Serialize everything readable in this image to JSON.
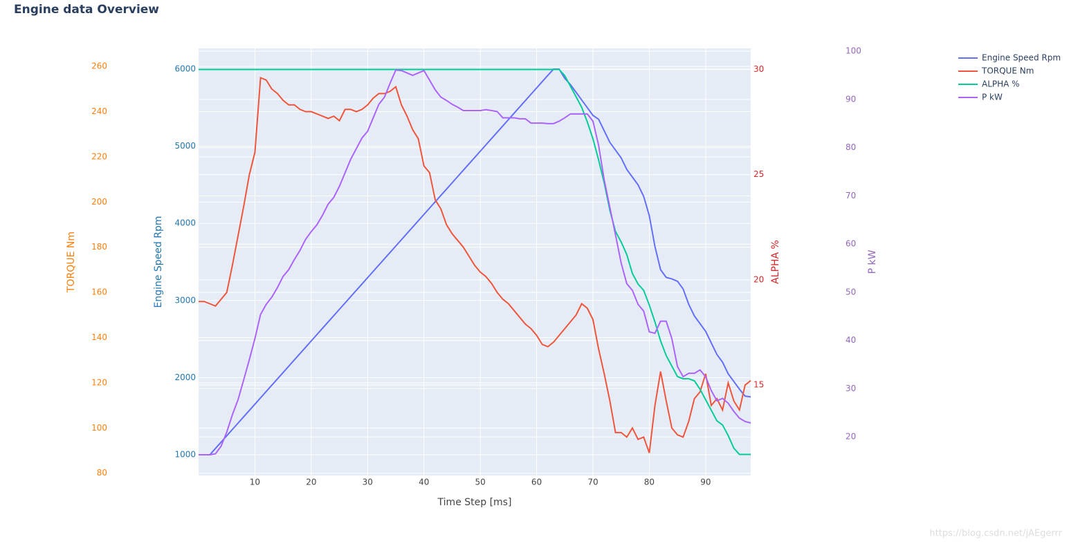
{
  "chart_data": {
    "type": "line",
    "title": "Engine data Overview",
    "xlabel": "Time Step [ms]",
    "watermark": "https://blog.csdn.net/jAEgerrr",
    "xlim": [
      0,
      98
    ],
    "xticks": [
      10,
      20,
      30,
      40,
      50,
      60,
      70,
      80,
      90
    ],
    "grid": true,
    "legend": "top-right",
    "yaxes": [
      {
        "id": "y3",
        "title": "TORQUE Nm",
        "color": "#ff7f0e",
        "lim": [
          79,
          268
        ],
        "ticks": [
          80,
          100,
          120,
          140,
          160,
          180,
          200,
          220,
          240,
          260
        ]
      },
      {
        "id": "y",
        "title": "Engine Speed Rpm",
        "color": "#1f77b4",
        "lim": [
          731,
          6269
        ],
        "ticks": [
          1000,
          2000,
          3000,
          4000,
          5000,
          6000
        ]
      },
      {
        "id": "y2",
        "title": "ALPHA %",
        "color": "#d62728",
        "lim": [
          10.7,
          31
        ],
        "ticks": [
          15,
          20,
          25,
          30
        ]
      },
      {
        "id": "y4",
        "title": "P kW",
        "color": "#9467bd",
        "lim": [
          12,
          100.6
        ],
        "ticks": [
          20,
          30,
          40,
          50,
          60,
          70,
          80,
          90,
          100
        ]
      }
    ],
    "x": [
      0,
      1,
      2,
      3,
      4,
      5,
      6,
      7,
      8,
      9,
      10,
      11,
      12,
      13,
      14,
      15,
      16,
      17,
      18,
      19,
      20,
      21,
      22,
      23,
      24,
      25,
      26,
      27,
      28,
      29,
      30,
      31,
      32,
      33,
      34,
      35,
      36,
      37,
      38,
      39,
      40,
      41,
      42,
      43,
      44,
      45,
      46,
      47,
      48,
      49,
      50,
      51,
      52,
      53,
      54,
      55,
      56,
      57,
      58,
      59,
      60,
      61,
      62,
      63,
      64,
      65,
      66,
      67,
      68,
      69,
      70,
      71,
      72,
      73,
      74,
      75,
      76,
      77,
      78,
      79,
      80,
      81,
      82,
      83,
      84,
      85,
      86,
      87,
      88,
      89,
      90,
      91,
      92,
      93,
      94,
      95,
      96,
      97,
      98
    ],
    "series": [
      {
        "name": "Engine Speed Rpm",
        "color": "#636efa",
        "axis": "y",
        "values": [
          1000,
          1000,
          1000,
          1082,
          1164,
          1246,
          1328,
          1410,
          1492,
          1574,
          1656,
          1738,
          1820,
          1902,
          1984,
          2066,
          2148,
          2230,
          2312,
          2394,
          2476,
          2558,
          2640,
          2722,
          2804,
          2886,
          2968,
          3050,
          3132,
          3214,
          3296,
          3378,
          3460,
          3542,
          3624,
          3706,
          3788,
          3870,
          3952,
          4034,
          4116,
          4198,
          4280,
          4362,
          4444,
          4526,
          4608,
          4690,
          4772,
          4854,
          4936,
          5018,
          5100,
          5182,
          5264,
          5346,
          5428,
          5510,
          5592,
          5674,
          5756,
          5838,
          5920,
          6000,
          6000,
          5880,
          5800,
          5700,
          5600,
          5500,
          5400,
          5350,
          5200,
          5050,
          4950,
          4850,
          4700,
          4600,
          4500,
          4350,
          4100,
          3700,
          3400,
          3300,
          3280,
          3250,
          3150,
          2950,
          2800,
          2700,
          2600,
          2450,
          2300,
          2200,
          2050,
          1950,
          1850,
          1760,
          1750
        ]
      },
      {
        "name": "TORQUE Nm",
        "color": "#EF553B",
        "axis": "y3",
        "values": [
          156,
          156,
          155,
          154,
          157,
          160,
          172,
          185,
          198,
          212,
          222,
          255,
          254,
          250,
          248,
          245,
          243,
          243,
          241,
          240,
          240,
          239,
          238,
          237,
          238,
          236,
          241,
          241,
          240,
          241,
          243,
          246,
          248,
          248,
          249,
          251,
          243,
          238,
          232,
          228,
          216,
          213,
          201,
          197,
          190,
          186,
          183,
          180,
          176,
          172,
          169,
          167,
          164,
          160,
          157,
          155,
          152,
          149,
          146,
          144,
          141,
          137,
          136,
          138,
          141,
          144,
          147,
          150,
          155,
          153,
          148,
          135,
          124,
          112,
          98,
          98,
          96,
          100,
          95,
          96,
          89,
          110,
          125,
          112,
          100,
          97,
          96,
          103,
          113,
          116,
          124,
          110,
          113,
          108,
          120,
          112,
          108,
          119,
          121
        ]
      },
      {
        "name": "ALPHA %",
        "color": "#00cc96",
        "axis": "y2",
        "values": [
          30,
          30,
          30,
          30,
          30,
          30,
          30,
          30,
          30,
          30,
          30,
          30,
          30,
          30,
          30,
          30,
          30,
          30,
          30,
          30,
          30,
          30,
          30,
          30,
          30,
          30,
          30,
          30,
          30,
          30,
          30,
          30,
          30,
          30,
          30,
          30,
          30,
          30,
          30,
          30,
          30,
          30,
          30,
          30,
          30,
          30,
          30,
          30,
          30,
          30,
          30,
          30,
          30,
          30,
          30,
          30,
          30,
          30,
          30,
          30,
          30,
          30,
          30,
          30,
          30,
          29.7,
          29.2,
          28.7,
          28.2,
          27.5,
          26.7,
          25.7,
          24.6,
          23.3,
          22.3,
          21.8,
          21.2,
          20.3,
          19.8,
          19.5,
          18.8,
          18.0,
          17.1,
          16.4,
          15.9,
          15.4,
          15.3,
          15.3,
          15.2,
          14.8,
          14.3,
          13.8,
          13.3,
          13.1,
          12.6,
          12.0,
          11.7,
          11.7,
          11.7
        ]
      },
      {
        "name": "P kW",
        "color": "#ab63fa",
        "axis": "y4",
        "values": [
          16.3,
          16.3,
          16.3,
          16.5,
          18.1,
          21,
          24.6,
          27.7,
          31.8,
          36,
          40.4,
          45.4,
          47.5,
          49,
          51,
          53.3,
          54.7,
          56.8,
          58.7,
          61,
          62.6,
          64,
          66,
          68.3,
          69.7,
          72,
          74.8,
          77.6,
          79.8,
          82,
          83.4,
          86.2,
          89,
          90.5,
          93.4,
          96.1,
          96,
          95.5,
          95,
          95.5,
          96,
          94,
          92,
          90.5,
          89.8,
          89,
          88.4,
          87.7,
          87.7,
          87.7,
          87.7,
          87.9,
          87.7,
          87.5,
          86.2,
          86.2,
          86.2,
          86,
          86,
          85.1,
          85.1,
          85.1,
          85,
          85,
          85.5,
          86.2,
          87,
          87,
          87,
          87,
          85.5,
          80.5,
          73.3,
          67.6,
          61.9,
          56.1,
          51.8,
          50.4,
          47.5,
          46.1,
          41.8,
          41.5,
          44,
          44,
          40.4,
          34.6,
          32.5,
          33.2,
          33.2,
          33.9,
          32.5,
          29.6,
          27.5,
          28,
          27,
          25.3,
          23.9,
          23.2,
          22.9
        ]
      }
    ]
  }
}
